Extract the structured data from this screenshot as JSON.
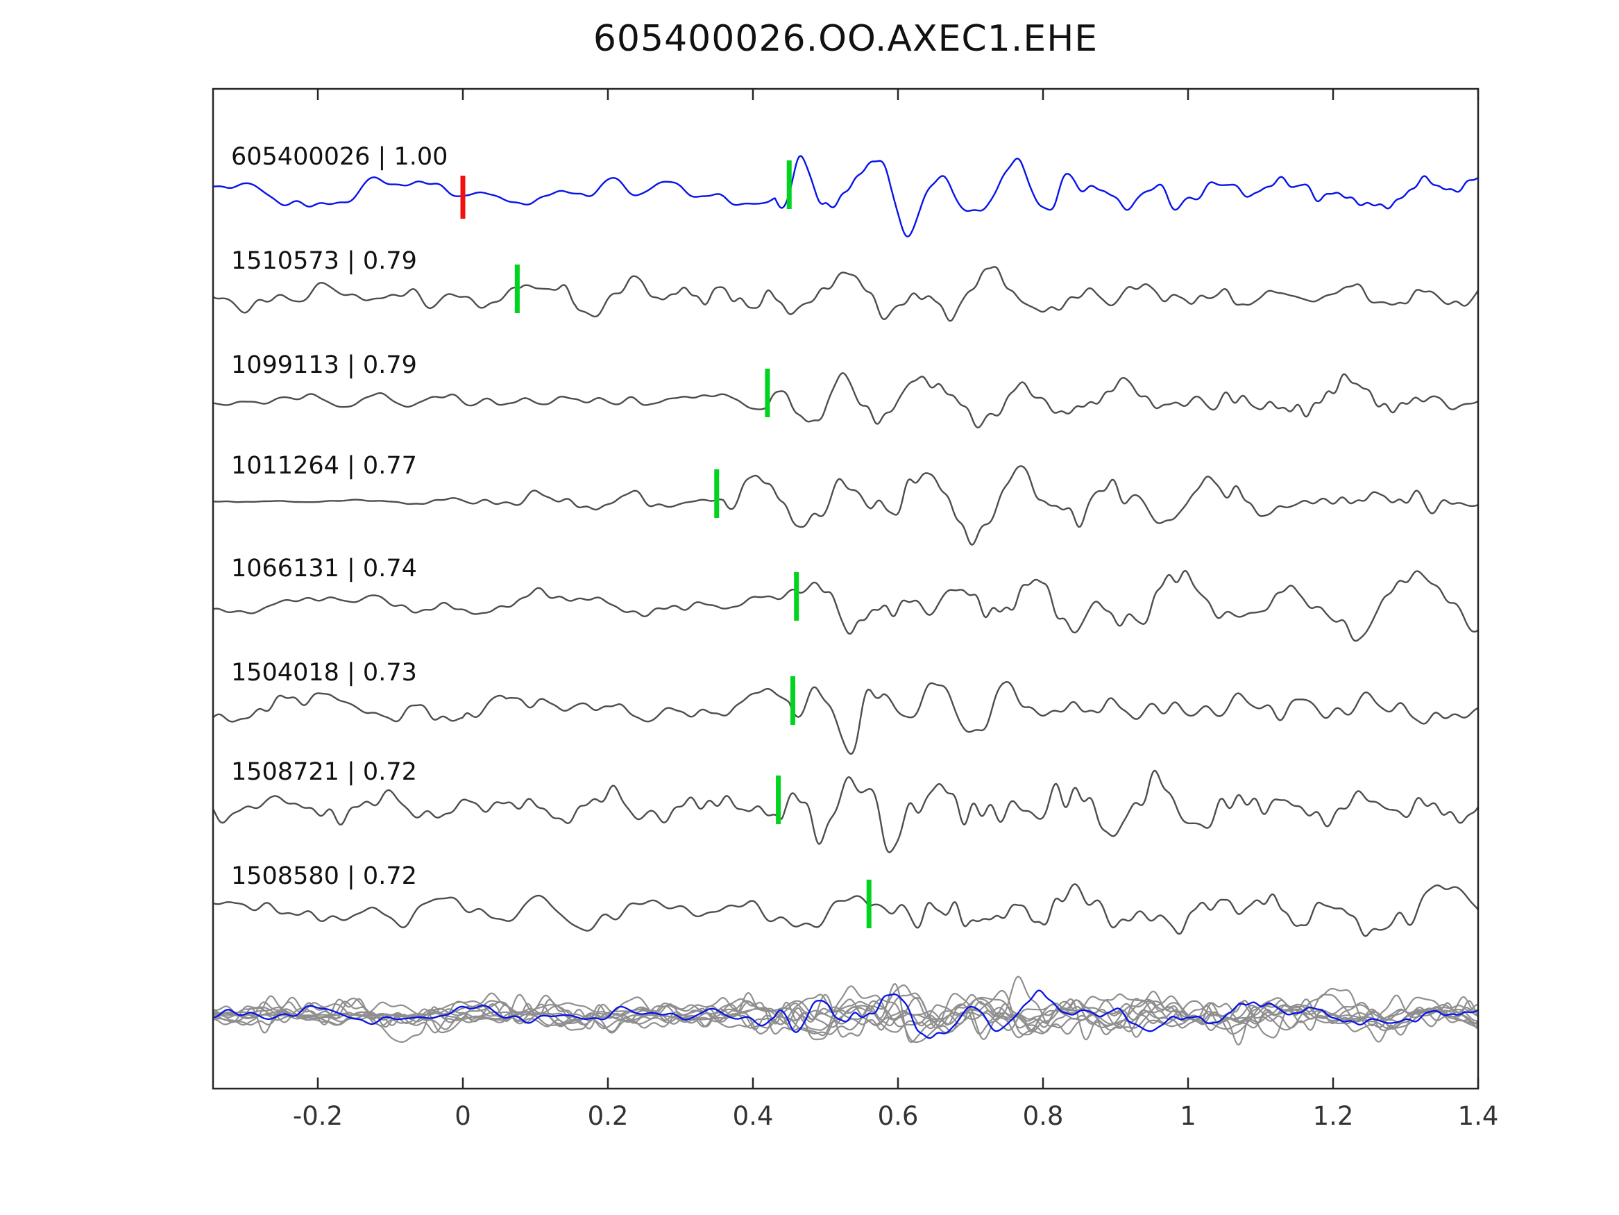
{
  "title": "605400026.OO.AXEC1.EHE",
  "chart_data": {
    "type": "line",
    "title": "605400026.OO.AXEC1.EHE",
    "description": "Template-matching waveform comparison: template trace (blue) with correlation-ranked matching event traces (gray), pick times marked in green, template origin marked in red, all traces overlaid in bottom row",
    "xlim": [
      -0.344,
      1.4
    ],
    "x_tick_values": [
      -0.2,
      0,
      0.2,
      0.4,
      0.6,
      0.8,
      1,
      1.2,
      1.4
    ],
    "x_ticks": [
      "-0.2",
      "0",
      "0.2",
      "0.4",
      "0.6",
      "0.8",
      "1",
      "1.2",
      "1.4"
    ],
    "grid": false,
    "legend": "none",
    "colors": {
      "template": "#0713e8",
      "match": "#4d4d4d",
      "overlay_gray": "#8f8f8f",
      "pick_marker": "#00d41e",
      "origin_marker": "#f21111",
      "axis": "#262626",
      "label_text": "#111111"
    },
    "traces": [
      {
        "id": "605400026",
        "cc": "1.00",
        "label": "605400026 | 1.00",
        "role": "template",
        "pick_x": 0.45,
        "origin_marker_x": 0.0
      },
      {
        "id": "1510573",
        "cc": "0.79",
        "label": "1510573 | 0.79",
        "role": "match",
        "pick_x": 0.075
      },
      {
        "id": "1099113",
        "cc": "0.79",
        "label": "1099113 | 0.79",
        "role": "match",
        "pick_x": 0.42
      },
      {
        "id": "1011264",
        "cc": "0.77",
        "label": "1011264 | 0.77",
        "role": "match",
        "pick_x": 0.35
      },
      {
        "id": "1066131",
        "cc": "0.74",
        "label": "1066131 | 0.74",
        "role": "match",
        "pick_x": 0.46
      },
      {
        "id": "1504018",
        "cc": "0.73",
        "label": "1504018 | 0.73",
        "role": "match",
        "pick_x": 0.455
      },
      {
        "id": "1508721",
        "cc": "0.72",
        "label": "1508721 | 0.72",
        "role": "match",
        "pick_x": 0.435
      },
      {
        "id": "1508580",
        "cc": "0.72",
        "label": "1508580 | 0.72",
        "role": "match",
        "pick_x": 0.56
      }
    ],
    "overlay_row": {
      "description": "all matched traces overlaid in gray with template overlaid in blue",
      "has_template": true
    }
  }
}
